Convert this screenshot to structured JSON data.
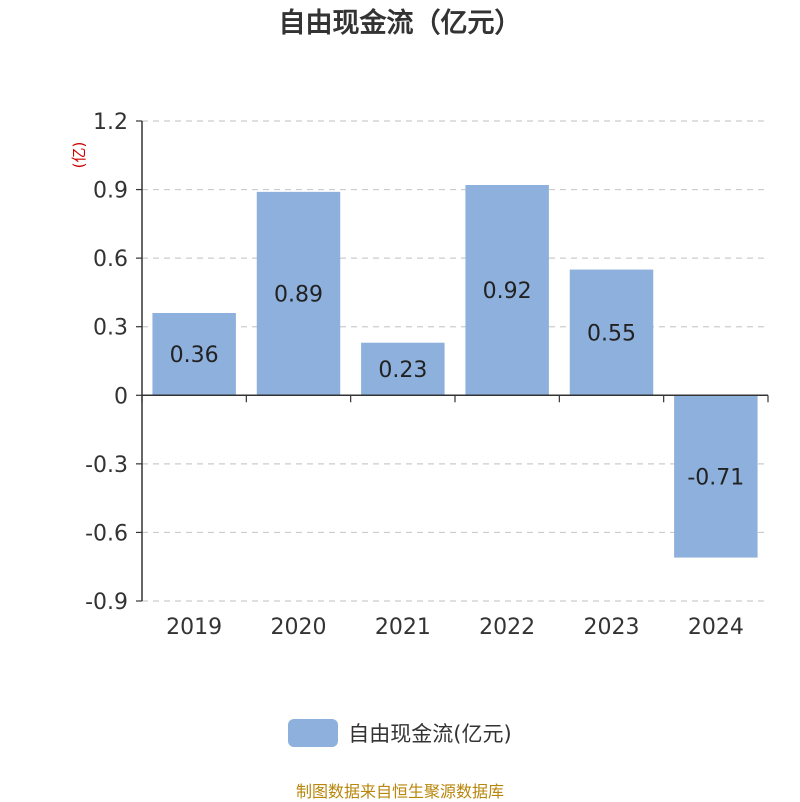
{
  "chart_data": {
    "type": "bar",
    "title": "自由现金流（亿元）",
    "ylabel": "(亿)",
    "categories": [
      "2019",
      "2020",
      "2021",
      "2022",
      "2023",
      "2024"
    ],
    "series": [
      {
        "name": "自由现金流(亿元)",
        "values": [
          0.36,
          0.89,
          0.23,
          0.92,
          0.55,
          -0.71
        ],
        "color": "#8eb0dc"
      }
    ],
    "ylim": [
      -0.9,
      1.2
    ],
    "yticks": [
      "1.2",
      "0.9",
      "0.6",
      "0.3",
      "0",
      "-0.3",
      "-0.6",
      "-0.9"
    ],
    "grid": "horizontal dashed",
    "legend": "bottom-center",
    "data_labels": true
  },
  "source_text": "制图数据来自恒生聚源数据库",
  "colors": {
    "bar": "#8eb0dc",
    "axis": "#333333",
    "grid": "#cccccc",
    "ylabel": "#cc0000",
    "source": "#b8860b"
  }
}
